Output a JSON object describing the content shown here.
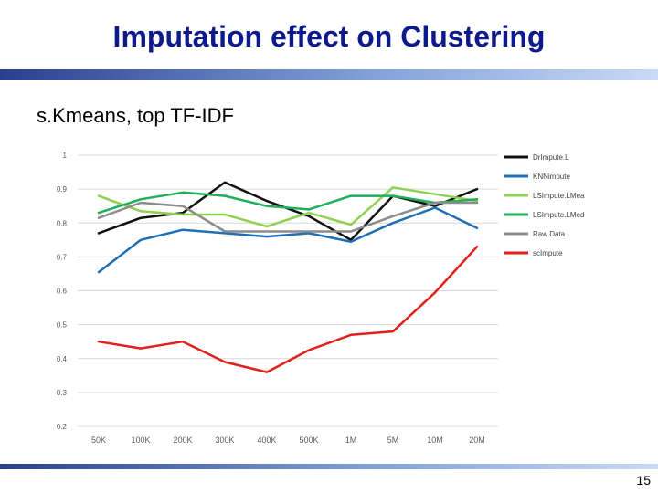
{
  "slide": {
    "title": "Imputation effect on Clustering",
    "subtitle": "s.Kmeans, top TF-IDF",
    "page_number": "15",
    "colors": {
      "title": "#0d1a8c",
      "rule_dark": "#2a3f8f",
      "rule_light": "#a9c4ee"
    }
  },
  "chart_data": {
    "type": "line",
    "title": "",
    "xlabel": "",
    "ylabel": "",
    "categories": [
      "50K",
      "100K",
      "200K",
      "300K",
      "400K",
      "500K",
      "1M",
      "5M",
      "10M",
      "20M"
    ],
    "y_ticks": [
      "1",
      "0.9",
      "0.8",
      "0.7",
      "0.6",
      "0.5",
      "0.4",
      "0.3",
      "0.2"
    ],
    "ylim": [
      0.2,
      1.0
    ],
    "grid": true,
    "legend_position": "right",
    "series": [
      {
        "name": "DrImpute.L",
        "color": "#111111",
        "values": [
          0.77,
          0.815,
          0.83,
          0.92,
          0.865,
          0.82,
          0.75,
          0.88,
          0.85,
          0.9
        ]
      },
      {
        "name": "KNNimpute",
        "color": "#1f6fb4",
        "values": [
          0.655,
          0.75,
          0.78,
          0.77,
          0.76,
          0.77,
          0.745,
          0.8,
          0.845,
          0.785
        ]
      },
      {
        "name": "LSImpute.LMean",
        "color": "#92d050",
        "values": [
          0.88,
          0.835,
          0.825,
          0.825,
          0.79,
          0.83,
          0.795,
          0.905,
          0.885,
          0.865
        ]
      },
      {
        "name": "LSImpute.LMed",
        "color": "#1fae5a",
        "values": [
          0.83,
          0.87,
          0.89,
          0.88,
          0.85,
          0.84,
          0.88,
          0.88,
          0.86,
          0.87
        ]
      },
      {
        "name": "Raw Data",
        "color": "#8c8c8c",
        "values": [
          0.815,
          0.86,
          0.85,
          0.775,
          0.775,
          0.775,
          0.775,
          0.82,
          0.86,
          0.86
        ]
      },
      {
        "name": "scImpute",
        "color": "#e3211c",
        "values": [
          0.45,
          0.43,
          0.45,
          0.39,
          0.36,
          0.425,
          0.47,
          0.48,
          0.595,
          0.73
        ]
      }
    ]
  }
}
